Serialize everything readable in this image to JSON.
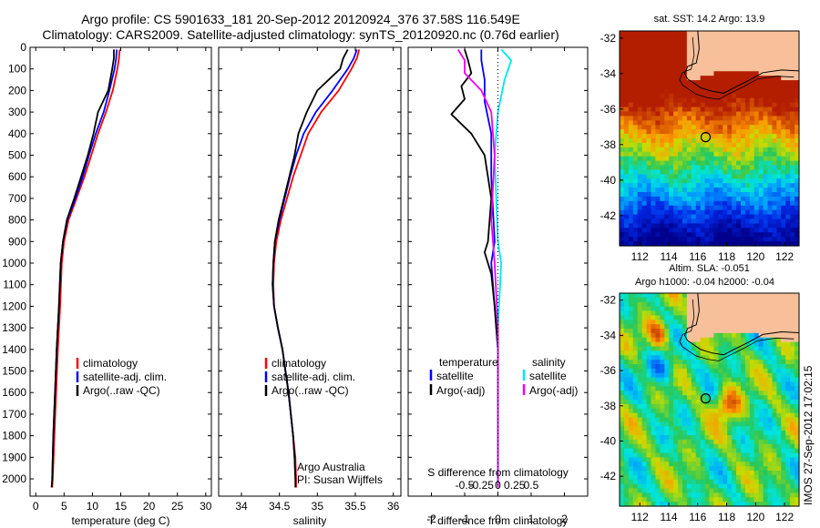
{
  "title_line1": "Argo profile: CS 5901633_181 20-Sep-2012 20120924_376 37.58S 116.549E",
  "title_line2": "Climatology: CARS2009. Satellite-adjusted climatology: synTS_20120920.nc (0.76d earlier)",
  "stamp": "IMOS 27-Sep-2012 17:02:15",
  "colors": {
    "climatology": "#ff0000",
    "satellite": "#0000ff",
    "argo": "#000000",
    "sal_sat": "#00e5ee",
    "sal_argo": "#ee00ee",
    "land": "#f7c09a"
  },
  "chart_data": [
    {
      "type": "line",
      "id": "temperature",
      "xlabel": "temperature (deg C)",
      "ylabel": "",
      "xlim": [
        -1,
        31
      ],
      "ylim": [
        2080,
        0
      ],
      "xticks": [
        0,
        5,
        10,
        15,
        20,
        25,
        30
      ],
      "yticks": [
        0,
        100,
        200,
        300,
        400,
        500,
        600,
        700,
        800,
        900,
        1000,
        1100,
        1200,
        1300,
        1400,
        1500,
        1600,
        1700,
        1800,
        1900,
        2000
      ],
      "legend": [
        "climatology",
        "satellite-adj. clim.",
        "Argo(..raw -QC)"
      ],
      "series": [
        {
          "name": "climatology",
          "color": "#ff0000",
          "points": [
            [
              14.8,
              10
            ],
            [
              14.7,
              50
            ],
            [
              14.4,
              100
            ],
            [
              13.6,
              200
            ],
            [
              12.4,
              300
            ],
            [
              11.0,
              400
            ],
            [
              9.8,
              500
            ],
            [
              8.6,
              600
            ],
            [
              7.2,
              700
            ],
            [
              5.8,
              800
            ],
            [
              5.0,
              900
            ],
            [
              4.6,
              1000
            ],
            [
              4.3,
              1200
            ],
            [
              3.9,
              1400
            ],
            [
              3.6,
              1600
            ],
            [
              3.3,
              1800
            ],
            [
              3.0,
              2000
            ],
            [
              2.9,
              2040
            ]
          ]
        },
        {
          "name": "satellite-adj. clim.",
          "color": "#0000ff",
          "points": [
            [
              14.3,
              10
            ],
            [
              14.2,
              50
            ],
            [
              13.9,
              100
            ],
            [
              13.0,
              200
            ],
            [
              12.0,
              300
            ],
            [
              10.6,
              400
            ],
            [
              9.4,
              500
            ],
            [
              8.3,
              600
            ],
            [
              7.0,
              700
            ],
            [
              5.6,
              800
            ],
            [
              4.8,
              900
            ],
            [
              4.4,
              1000
            ],
            [
              4.1,
              1200
            ],
            [
              3.7,
              1400
            ],
            [
              3.4,
              1600
            ],
            [
              3.1,
              1800
            ],
            [
              2.9,
              2000
            ]
          ]
        },
        {
          "name": "Argo(..raw -QC)",
          "color": "#000000",
          "points": [
            [
              13.8,
              10
            ],
            [
              13.8,
              50
            ],
            [
              13.5,
              100
            ],
            [
              12.8,
              200
            ],
            [
              11.0,
              300
            ],
            [
              10.2,
              400
            ],
            [
              9.2,
              500
            ],
            [
              8.0,
              600
            ],
            [
              6.8,
              700
            ],
            [
              5.5,
              800
            ],
            [
              4.8,
              900
            ],
            [
              4.4,
              1000
            ],
            [
              4.1,
              1200
            ],
            [
              3.7,
              1400
            ],
            [
              3.4,
              1600
            ],
            [
              3.1,
              1800
            ],
            [
              2.9,
              2000
            ],
            [
              2.8,
              2040
            ]
          ]
        }
      ]
    },
    {
      "type": "line",
      "id": "salinity",
      "xlabel": "salinity",
      "xlim": [
        33.7,
        36.1
      ],
      "ylim": [
        2080,
        0
      ],
      "xticks": [
        34,
        34.5,
        35,
        35.5,
        36
      ],
      "legend": [
        "climatology",
        "satellite-adj. clim.",
        "Argo(..raw -QC)"
      ],
      "annotation": [
        "Argo Australia",
        "PI: Susan Wijffels"
      ],
      "series": [
        {
          "name": "climatology",
          "color": "#ff0000",
          "points": [
            [
              35.55,
              10
            ],
            [
              35.52,
              50
            ],
            [
              35.45,
              100
            ],
            [
              35.28,
              200
            ],
            [
              35.05,
              300
            ],
            [
              34.88,
              400
            ],
            [
              34.78,
              500
            ],
            [
              34.68,
              600
            ],
            [
              34.6,
              700
            ],
            [
              34.52,
              800
            ],
            [
              34.46,
              900
            ],
            [
              34.43,
              1000
            ],
            [
              34.42,
              1100
            ],
            [
              34.43,
              1200
            ],
            [
              34.48,
              1300
            ],
            [
              34.54,
              1400
            ],
            [
              34.58,
              1500
            ],
            [
              34.62,
              1600
            ],
            [
              34.65,
              1700
            ],
            [
              34.68,
              1800
            ],
            [
              34.71,
              1900
            ],
            [
              34.72,
              2000
            ],
            [
              34.72,
              2040
            ]
          ]
        },
        {
          "name": "satellite-adj. clim.",
          "color": "#0000ff",
          "points": [
            [
              35.52,
              10
            ],
            [
              35.48,
              50
            ],
            [
              35.4,
              100
            ],
            [
              35.2,
              200
            ],
            [
              34.98,
              300
            ],
            [
              34.82,
              400
            ],
            [
              34.72,
              500
            ],
            [
              34.64,
              600
            ],
            [
              34.57,
              700
            ],
            [
              34.5,
              800
            ],
            [
              34.44,
              900
            ],
            [
              34.42,
              1000
            ],
            [
              34.41,
              1100
            ],
            [
              34.43,
              1200
            ],
            [
              34.48,
              1300
            ],
            [
              34.54,
              1400
            ],
            [
              34.58,
              1500
            ],
            [
              34.62,
              1600
            ],
            [
              34.65,
              1700
            ],
            [
              34.68,
              1800
            ],
            [
              34.7,
              1900
            ],
            [
              34.71,
              2000
            ]
          ]
        },
        {
          "name": "Argo(..raw -QC)",
          "color": "#000000",
          "points": [
            [
              35.4,
              10
            ],
            [
              35.34,
              50
            ],
            [
              35.3,
              100
            ],
            [
              35.0,
              200
            ],
            [
              34.86,
              300
            ],
            [
              34.75,
              400
            ],
            [
              34.7,
              500
            ],
            [
              34.63,
              600
            ],
            [
              34.56,
              700
            ],
            [
              34.49,
              800
            ],
            [
              34.44,
              900
            ],
            [
              34.42,
              1000
            ],
            [
              34.41,
              1100
            ],
            [
              34.43,
              1200
            ],
            [
              34.48,
              1300
            ],
            [
              34.54,
              1400
            ],
            [
              34.58,
              1500
            ],
            [
              34.62,
              1600
            ],
            [
              34.65,
              1700
            ],
            [
              34.68,
              1800
            ],
            [
              34.7,
              1900
            ],
            [
              34.71,
              2000
            ],
            [
              34.71,
              2040
            ]
          ]
        }
      ]
    },
    {
      "type": "line",
      "id": "differences",
      "xlabel": "T difference from climatology",
      "xlabel_top": "S difference from climatology",
      "xlim": [
        -2.7,
        2.7
      ],
      "ylim": [
        2080,
        0
      ],
      "xticks": [
        -2,
        -1,
        0,
        1,
        2
      ],
      "xticks_salinity": [
        "-0.5",
        "-0.25",
        "0",
        "0.25",
        "0.5"
      ],
      "legend": {
        "temperature": {
          "title": "temperature",
          "items": [
            "satellite",
            "Argo(-adj)"
          ]
        },
        "salinity": {
          "title": "salinity",
          "items": [
            "satellite",
            "Argo(-adj)"
          ]
        }
      },
      "series": [
        {
          "name": "temperature satellite",
          "color": "#0000ff",
          "points": [
            [
              -0.5,
              10
            ],
            [
              -0.5,
              60
            ],
            [
              -0.4,
              150
            ],
            [
              -0.4,
              250
            ],
            [
              -0.2,
              400
            ],
            [
              -0.2,
              600
            ],
            [
              -0.1,
              900
            ],
            [
              -0.2,
              1000
            ],
            [
              -0.1,
              1200
            ],
            [
              0,
              1400
            ],
            [
              0,
              2040
            ]
          ]
        },
        {
          "name": "temperature Argo(-adj)",
          "color": "#000000",
          "points": [
            [
              -1.0,
              10
            ],
            [
              -0.9,
              60
            ],
            [
              -0.8,
              120
            ],
            [
              -1.1,
              180
            ],
            [
              -1.0,
              240
            ],
            [
              -1.4,
              310
            ],
            [
              -0.8,
              400
            ],
            [
              -0.4,
              500
            ],
            [
              -0.2,
              700
            ],
            [
              -0.3,
              900
            ],
            [
              -0.4,
              950
            ],
            [
              -0.2,
              1050
            ],
            [
              -0.1,
              1200
            ],
            [
              0,
              1400
            ],
            [
              0,
              2040
            ]
          ]
        },
        {
          "name": "salinity satellite",
          "color": "#00e5ee",
          "points": [
            [
              0.1,
              10
            ],
            [
              0.4,
              60
            ],
            [
              0.2,
              150
            ],
            [
              0,
              300
            ],
            [
              -0.1,
              500
            ],
            [
              0,
              900
            ],
            [
              0.1,
              1000
            ],
            [
              0,
              1300
            ],
            [
              0,
              2040
            ]
          ]
        },
        {
          "name": "salinity Argo(-adj)",
          "color": "#ee00ee",
          "points": [
            [
              -1.2,
              10
            ],
            [
              -1.0,
              60
            ],
            [
              -1.0,
              120
            ],
            [
              -0.5,
              200
            ],
            [
              -0.2,
              300
            ],
            [
              -0.1,
              500
            ],
            [
              -0.2,
              800
            ],
            [
              -0.1,
              1000
            ],
            [
              0,
              1300
            ],
            [
              0,
              2040
            ]
          ]
        }
      ]
    },
    {
      "type": "heatmap",
      "id": "sst_map",
      "title": "sat. SST: 14.2  Argo: 13.9",
      "xticks": [
        112,
        114,
        116,
        118,
        120,
        122
      ],
      "yticks": [
        -32,
        -34,
        -36,
        -38,
        -40,
        -42
      ],
      "xlim": [
        110.6,
        123
      ],
      "ylim": [
        -43.7,
        -31.6
      ],
      "marker": [
        116.549,
        -37.58
      ]
    },
    {
      "type": "heatmap",
      "id": "sla_map",
      "title": "Altim. SLA: -0.051",
      "subtitle": "Argo h1000: -0.04 h2000: -0.04",
      "xticks": [
        112,
        114,
        116,
        118,
        120,
        122
      ],
      "yticks": [
        -32,
        -34,
        -36,
        -38,
        -40,
        -42
      ],
      "xlim": [
        110.6,
        123
      ],
      "ylim": [
        -43.7,
        -31.6
      ],
      "marker": [
        116.549,
        -37.58
      ]
    }
  ]
}
